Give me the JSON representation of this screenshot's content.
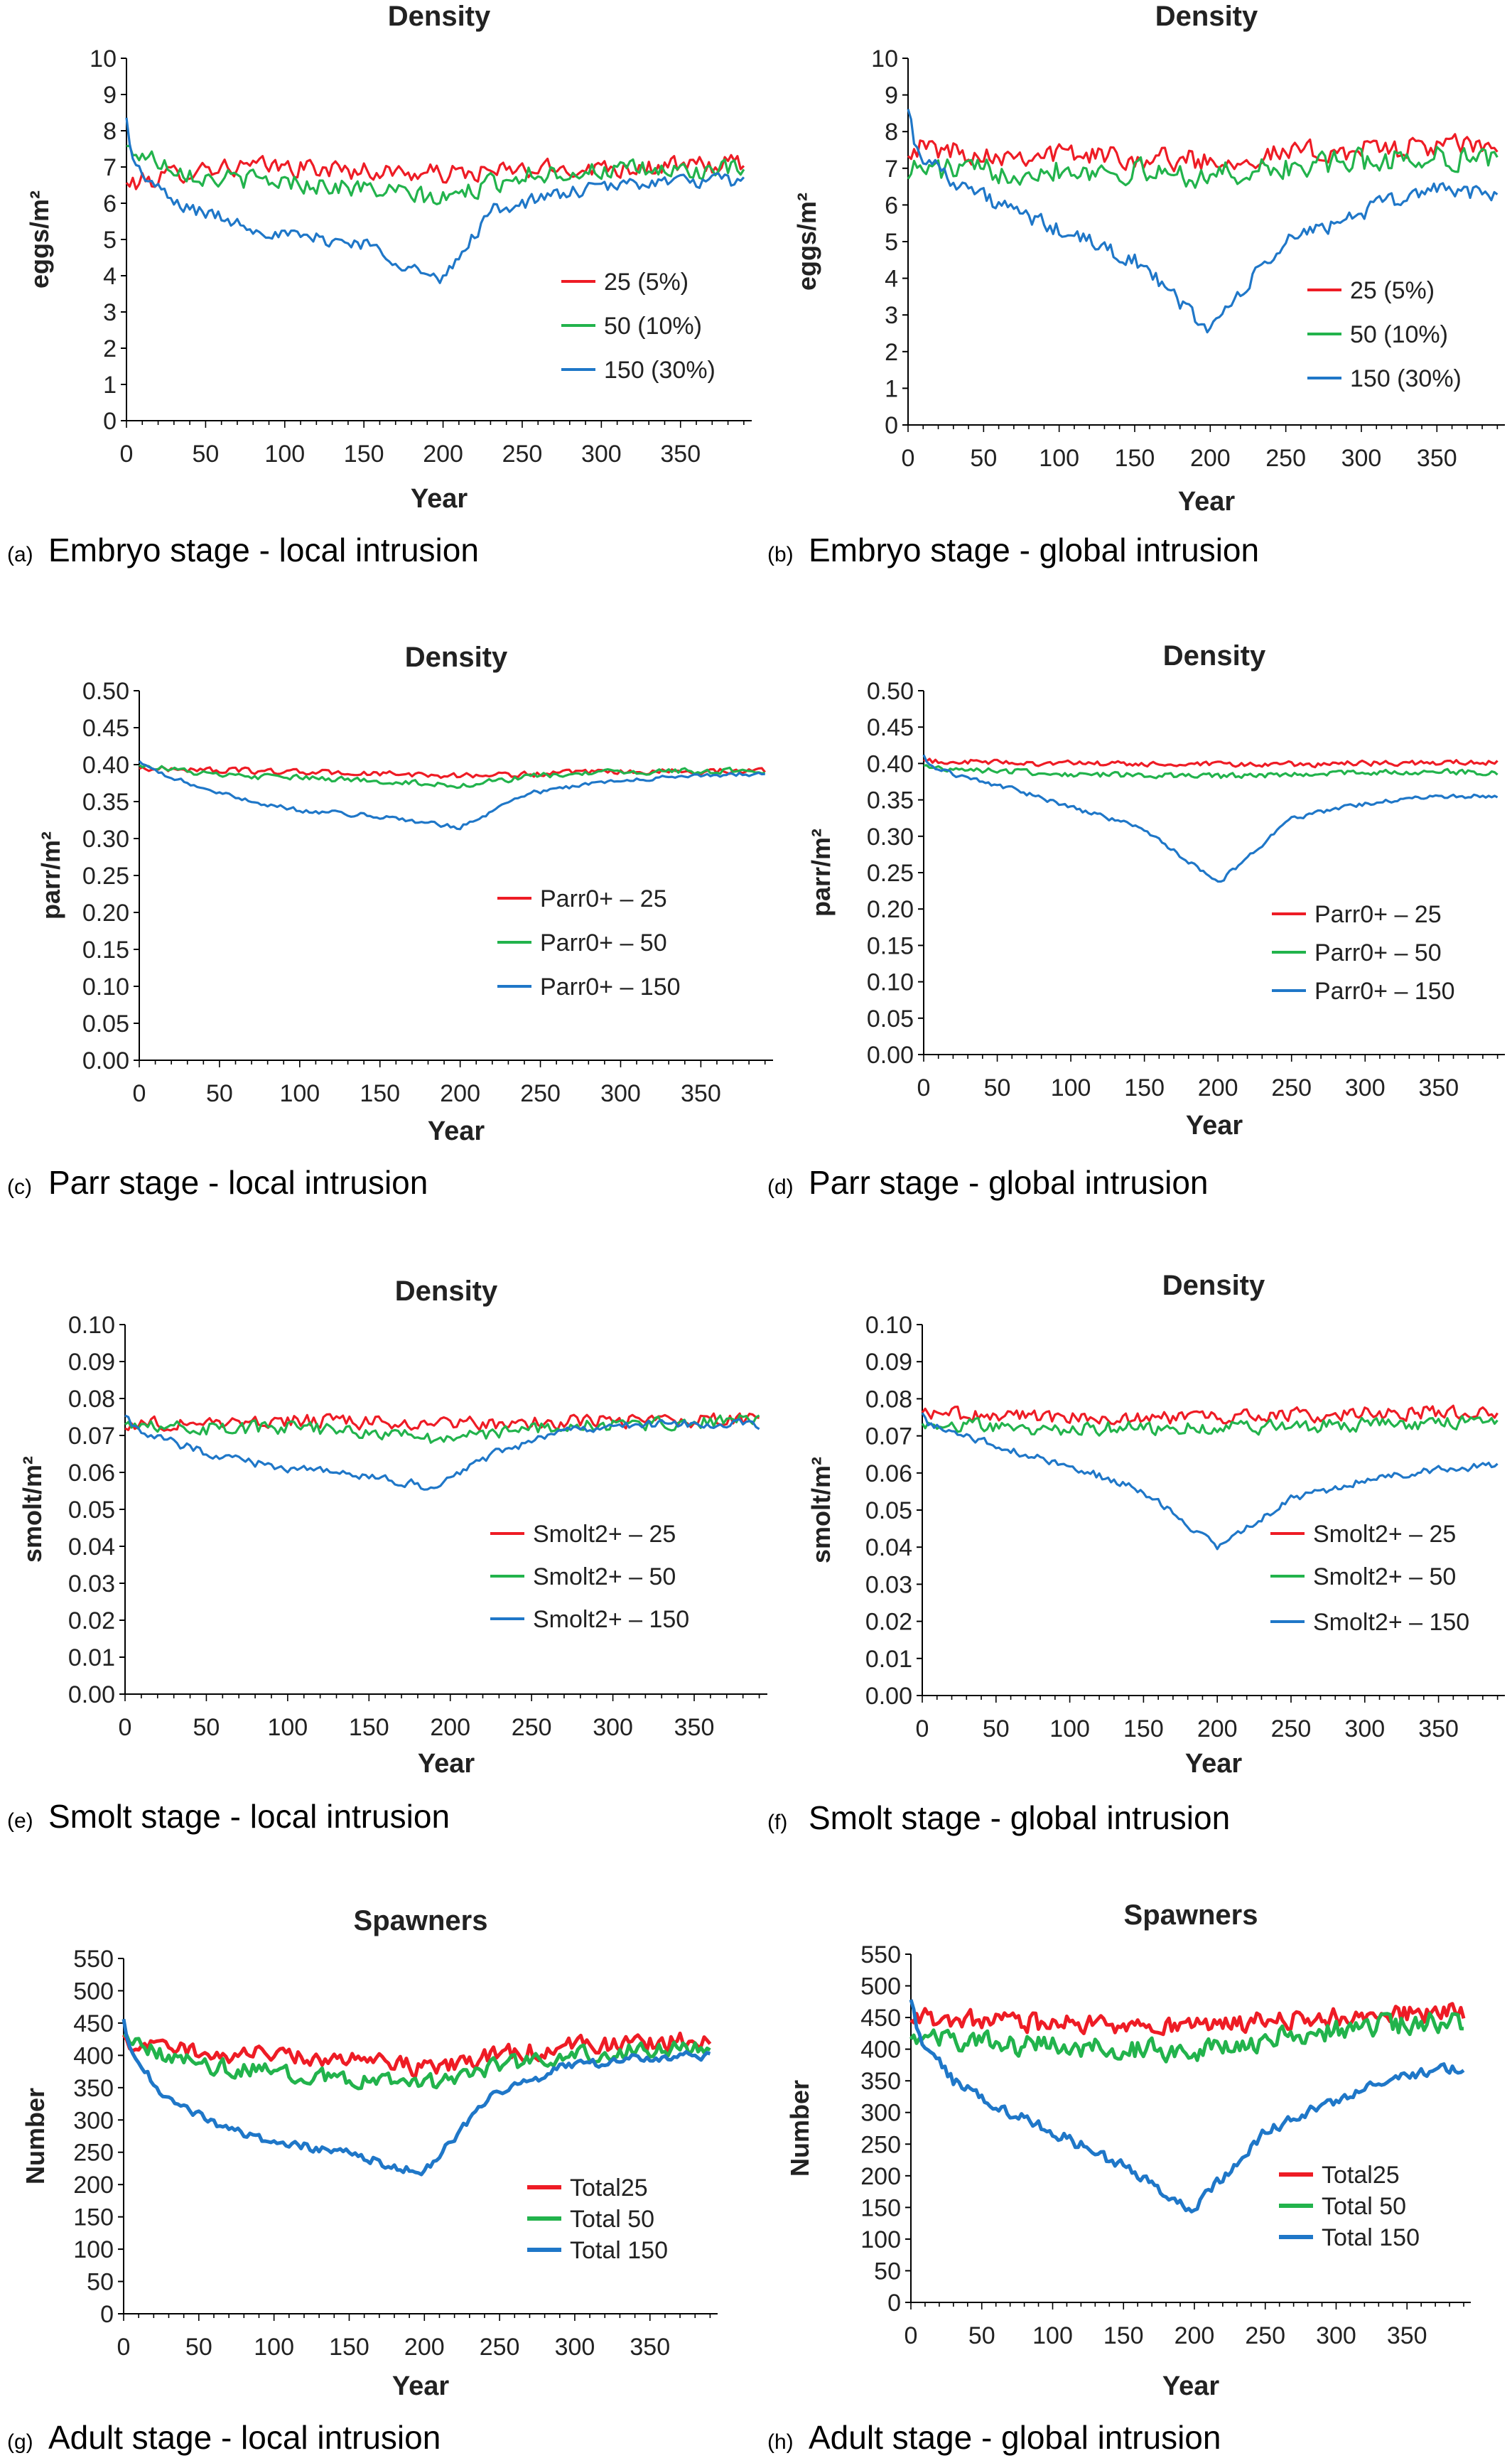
{
  "chart_data": [
    {
      "panel": "a",
      "type": "line",
      "title": "Density",
      "caption_letter": "(a)",
      "caption": "Embryo stage - local intrusion",
      "xlabel": "Year",
      "ylabel": "eggs/m²",
      "xlim": [
        0,
        395
      ],
      "ylim": [
        0,
        10
      ],
      "xticks": [
        "0",
        "50",
        "100",
        "150",
        "200",
        "250",
        "300",
        "350"
      ],
      "yticks": [
        "0",
        "1",
        "2",
        "3",
        "4",
        "5",
        "6",
        "7",
        "8",
        "9",
        "10"
      ],
      "legend_position": "lower-right",
      "series": [
        {
          "name": "25 (5%)",
          "color": "#ee1c25",
          "x": [
            0,
            50,
            100,
            150,
            200,
            250,
            300,
            350,
            390
          ],
          "y": [
            6.5,
            7.0,
            7.0,
            6.9,
            6.8,
            6.9,
            7.0,
            7.0,
            7.1
          ],
          "noise": 0.35
        },
        {
          "name": "50 (10%)",
          "color": "#22b34c",
          "x": [
            0,
            50,
            100,
            150,
            200,
            250,
            300,
            350,
            390
          ],
          "y": [
            7.5,
            6.7,
            6.6,
            6.4,
            6.1,
            6.8,
            6.9,
            6.9,
            6.9
          ],
          "noise": 0.35
        },
        {
          "name": "150 (30%)",
          "color": "#1f77c8",
          "x": [
            0,
            5,
            30,
            60,
            100,
            150,
            199,
            230,
            280,
            330,
            390
          ],
          "y": [
            8.3,
            7.0,
            6.0,
            5.6,
            5.1,
            4.9,
            3.8,
            5.8,
            6.3,
            6.6,
            6.6
          ],
          "noise": 0.25
        }
      ]
    },
    {
      "panel": "b",
      "type": "line",
      "title": "Density",
      "caption_letter": "(b)",
      "caption": "Embryo stage - global intrusion",
      "xlabel": "Year",
      "ylabel": "eggs/m²",
      "xlim": [
        0,
        395
      ],
      "ylim": [
        0,
        10
      ],
      "xticks": [
        "0",
        "50",
        "100",
        "150",
        "200",
        "250",
        "300",
        "350"
      ],
      "yticks": [
        "0",
        "1",
        "2",
        "3",
        "4",
        "5",
        "6",
        "7",
        "8",
        "9",
        "10"
      ],
      "legend_position": "lower-right",
      "series": [
        {
          "name": "25 (5%)",
          "color": "#ee1c25",
          "x": [
            0,
            50,
            100,
            150,
            200,
            250,
            300,
            350,
            390
          ],
          "y": [
            7.6,
            7.4,
            7.4,
            7.3,
            7.2,
            7.4,
            7.5,
            7.6,
            7.6
          ],
          "noise": 0.4
        },
        {
          "name": "50 (10%)",
          "color": "#22b34c",
          "x": [
            0,
            50,
            100,
            150,
            200,
            250,
            300,
            350,
            390
          ],
          "y": [
            7.0,
            6.9,
            7.0,
            6.9,
            6.8,
            7.0,
            7.2,
            7.3,
            7.3
          ],
          "noise": 0.45
        },
        {
          "name": "150 (30%)",
          "color": "#1f77c8",
          "x": [
            0,
            5,
            30,
            60,
            100,
            150,
            199,
            250,
            300,
            350,
            390
          ],
          "y": [
            8.8,
            7.5,
            6.7,
            6.0,
            5.3,
            4.5,
            2.6,
            5.0,
            5.8,
            6.5,
            6.2
          ],
          "noise": 0.3
        }
      ]
    },
    {
      "panel": "c",
      "type": "line",
      "title": "Density",
      "caption_letter": "(c)",
      "caption": "Parr stage - local intrusion",
      "xlabel": "Year",
      "ylabel": "parr/m²",
      "xlim": [
        0,
        395
      ],
      "ylim": [
        0,
        0.5
      ],
      "xticks": [
        "0",
        "50",
        "100",
        "150",
        "200",
        "250",
        "300",
        "350"
      ],
      "yticks": [
        "0.00",
        "0.05",
        "0.10",
        "0.15",
        "0.20",
        "0.25",
        "0.30",
        "0.35",
        "0.40",
        "0.45",
        "0.50"
      ],
      "legend_position": "lower-right",
      "series": [
        {
          "name": "Parr0+ – 25",
          "color": "#ee1c25",
          "x": [
            0,
            100,
            200,
            300,
            390
          ],
          "y": [
            0.395,
            0.39,
            0.385,
            0.39,
            0.392
          ],
          "noise": 0.005
        },
        {
          "name": "Parr0+ – 50",
          "color": "#22b34c",
          "x": [
            0,
            50,
            100,
            150,
            200,
            250,
            300,
            390
          ],
          "y": [
            0.4,
            0.385,
            0.382,
            0.378,
            0.372,
            0.385,
            0.39,
            0.392
          ],
          "noise": 0.005
        },
        {
          "name": "Parr0+ – 150",
          "color": "#1f77c8",
          "x": [
            0,
            5,
            30,
            60,
            100,
            150,
            200,
            240,
            300,
            390
          ],
          "y": [
            0.405,
            0.395,
            0.375,
            0.355,
            0.338,
            0.33,
            0.315,
            0.36,
            0.38,
            0.388
          ],
          "noise": 0.004
        }
      ]
    },
    {
      "panel": "d",
      "type": "line",
      "title": "Density",
      "caption_letter": "(d)",
      "caption": "Parr stage - global intrusion",
      "xlabel": "Year",
      "ylabel": "parr/m²",
      "xlim": [
        0,
        395
      ],
      "ylim": [
        0,
        0.5
      ],
      "xticks": [
        "0",
        "50",
        "100",
        "150",
        "200",
        "250",
        "300",
        "350"
      ],
      "yticks": [
        "0.00",
        "0.05",
        "0.10",
        "0.15",
        "0.20",
        "0.25",
        "0.30",
        "0.35",
        "0.40",
        "0.45",
        "0.50"
      ],
      "legend_position": "lower-right",
      "series": [
        {
          "name": "Parr0+ – 25",
          "color": "#ee1c25",
          "x": [
            0,
            100,
            200,
            300,
            390
          ],
          "y": [
            0.403,
            0.4,
            0.398,
            0.4,
            0.402
          ],
          "noise": 0.005
        },
        {
          "name": "Parr0+ – 50",
          "color": "#22b34c",
          "x": [
            0,
            100,
            200,
            300,
            390
          ],
          "y": [
            0.395,
            0.385,
            0.382,
            0.388,
            0.388
          ],
          "noise": 0.005
        },
        {
          "name": "Parr0+ – 150",
          "color": "#1f77c8",
          "x": [
            0,
            5,
            30,
            60,
            100,
            150,
            200,
            250,
            300,
            350,
            390
          ],
          "y": [
            0.41,
            0.395,
            0.38,
            0.365,
            0.34,
            0.31,
            0.235,
            0.325,
            0.345,
            0.355,
            0.355
          ],
          "noise": 0.004
        }
      ]
    },
    {
      "panel": "e",
      "type": "line",
      "title": "Density",
      "caption_letter": "(e)",
      "caption": "Smolt stage - local intrusion",
      "xlabel": "Year",
      "ylabel": "smolt/m²",
      "xlim": [
        0,
        395
      ],
      "ylim": [
        0,
        0.1
      ],
      "xticks": [
        "0",
        "50",
        "100",
        "150",
        "200",
        "250",
        "300",
        "350"
      ],
      "yticks": [
        "0.00",
        "0.01",
        "0.02",
        "0.03",
        "0.04",
        "0.05",
        "0.06",
        "0.07",
        "0.08",
        "0.09",
        "0.10"
      ],
      "legend_position": "lower-right",
      "series": [
        {
          "name": "Smolt2+ – 25",
          "color": "#ee1c25",
          "x": [
            0,
            100,
            200,
            300,
            390
          ],
          "y": [
            0.073,
            0.074,
            0.073,
            0.074,
            0.074
          ],
          "noise": 0.0025
        },
        {
          "name": "Smolt2+ – 50",
          "color": "#22b34c",
          "x": [
            0,
            50,
            100,
            150,
            200,
            250,
            300,
            390
          ],
          "y": [
            0.074,
            0.072,
            0.072,
            0.071,
            0.069,
            0.072,
            0.073,
            0.074
          ],
          "noise": 0.0025
        },
        {
          "name": "Smolt2+ – 150",
          "color": "#1f77c8",
          "x": [
            0,
            5,
            30,
            60,
            100,
            150,
            190,
            230,
            280,
            330,
            390
          ],
          "y": [
            0.076,
            0.072,
            0.068,
            0.064,
            0.061,
            0.059,
            0.056,
            0.066,
            0.072,
            0.073,
            0.073
          ],
          "noise": 0.0015
        }
      ]
    },
    {
      "panel": "f",
      "type": "line",
      "title": "Density",
      "caption_letter": "(f)",
      "caption": "Smolt stage - global intrusion",
      "xlabel": "Year",
      "ylabel": "smolt/m²",
      "xlim": [
        0,
        395
      ],
      "ylim": [
        0,
        0.1
      ],
      "xticks": [
        "0",
        "50",
        "100",
        "150",
        "200",
        "250",
        "300",
        "350"
      ],
      "yticks": [
        "0.00",
        "0.01",
        "0.02",
        "0.03",
        "0.04",
        "0.05",
        "0.06",
        "0.07",
        "0.08",
        "0.09",
        "0.10"
      ],
      "legend_position": "lower-right",
      "series": [
        {
          "name": "Smolt2+ – 25",
          "color": "#ee1c25",
          "x": [
            0,
            100,
            200,
            300,
            390
          ],
          "y": [
            0.076,
            0.075,
            0.075,
            0.076,
            0.077
          ],
          "noise": 0.0025
        },
        {
          "name": "Smolt2+ – 50",
          "color": "#22b34c",
          "x": [
            0,
            100,
            200,
            300,
            390
          ],
          "y": [
            0.073,
            0.072,
            0.072,
            0.073,
            0.074
          ],
          "noise": 0.0025
        },
        {
          "name": "Smolt2+ – 150",
          "color": "#1f77c8",
          "x": [
            0,
            5,
            30,
            60,
            100,
            150,
            200,
            250,
            300,
            350,
            390
          ],
          "y": [
            0.076,
            0.073,
            0.07,
            0.066,
            0.062,
            0.055,
            0.04,
            0.053,
            0.058,
            0.061,
            0.062
          ],
          "noise": 0.0013
        }
      ]
    },
    {
      "panel": "g",
      "type": "line",
      "title": "Spawners",
      "caption_letter": "(g)",
      "caption": "Adult stage - local intrusion",
      "xlabel": "Year",
      "ylabel": "Number",
      "xlim": [
        0,
        395
      ],
      "ylim": [
        0,
        550
      ],
      "xticks": [
        "0",
        "50",
        "100",
        "150",
        "200",
        "250",
        "300",
        "350"
      ],
      "yticks": [
        "0",
        "50",
        "100",
        "150",
        "200",
        "250",
        "300",
        "350",
        "400",
        "450",
        "500",
        "550"
      ],
      "legend_position": "lower-right",
      "series": [
        {
          "name": "Total25",
          "color": "#ee1c25",
          "x": [
            0,
            50,
            100,
            150,
            200,
            250,
            300,
            350,
            390
          ],
          "y": [
            420,
            405,
            400,
            395,
            380,
            400,
            415,
            420,
            425
          ],
          "noise": 18
        },
        {
          "name": "Total 50",
          "color": "#22b34c",
          "x": [
            0,
            50,
            100,
            150,
            200,
            250,
            300,
            350,
            390
          ],
          "y": [
            420,
            385,
            375,
            365,
            355,
            385,
            400,
            410,
            410
          ],
          "noise": 16
        },
        {
          "name": "Total 150",
          "color": "#1f77c8",
          "x": [
            0,
            5,
            30,
            60,
            100,
            150,
            199,
            240,
            290,
            340,
            390
          ],
          "y": [
            450,
            400,
            330,
            295,
            265,
            250,
            215,
            330,
            380,
            395,
            400
          ],
          "noise": 9
        }
      ]
    },
    {
      "panel": "h",
      "type": "line",
      "title": "Spawners",
      "caption_letter": "(h)",
      "caption": "Adult stage - global intrusion",
      "xlabel": "Year",
      "ylabel": "Number",
      "xlim": [
        0,
        395
      ],
      "ylim": [
        0,
        550
      ],
      "xticks": [
        "0",
        "50",
        "100",
        "150",
        "200",
        "250",
        "300",
        "350"
      ],
      "yticks": [
        "0",
        "50",
        "100",
        "150",
        "200",
        "250",
        "300",
        "350",
        "400",
        "450",
        "500",
        "550"
      ],
      "legend_position": "lower-right",
      "series": [
        {
          "name": "Total25",
          "color": "#ee1c25",
          "x": [
            0,
            50,
            100,
            150,
            200,
            250,
            300,
            350,
            390
          ],
          "y": [
            450,
            445,
            440,
            440,
            435,
            445,
            450,
            455,
            460
          ],
          "noise": 20
        },
        {
          "name": "Total 50",
          "color": "#22b34c",
          "x": [
            0,
            50,
            100,
            150,
            200,
            250,
            300,
            350,
            390
          ],
          "y": [
            420,
            410,
            405,
            400,
            395,
            415,
            430,
            440,
            445
          ],
          "noise": 22
        },
        {
          "name": "Total 150",
          "color": "#1f77c8",
          "x": [
            0,
            5,
            30,
            60,
            100,
            150,
            199,
            250,
            300,
            350,
            390
          ],
          "y": [
            480,
            420,
            350,
            310,
            270,
            215,
            145,
            270,
            320,
            360,
            370
          ],
          "noise": 11
        }
      ]
    }
  ]
}
